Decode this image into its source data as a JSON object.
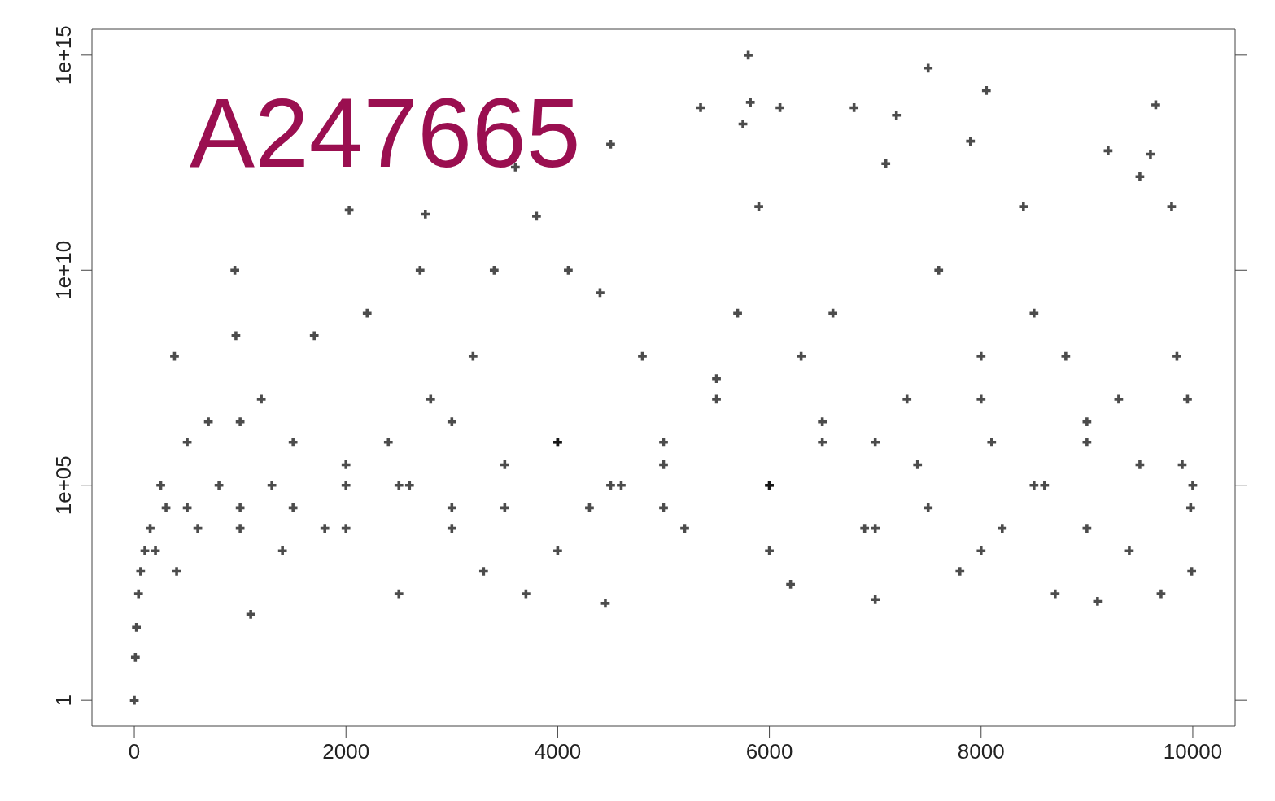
{
  "chart_data": {
    "type": "scatter",
    "annotations": [
      "A247665"
    ],
    "log": "y",
    "marker": "cross",
    "grid": false,
    "legend": false,
    "xlim": [
      -400,
      10400
    ],
    "xticks": [
      0,
      2000,
      4000,
      6000,
      8000,
      10000
    ],
    "ylim": [
      0.25,
      4000000000000000.0
    ],
    "yticks": [
      {
        "value": 1,
        "label": "1"
      },
      {
        "value": 100000,
        "label": "1e+05"
      },
      {
        "value": 10000000000,
        "label": "1e+10"
      },
      {
        "value": 1000000000000000,
        "label": "1e+15"
      }
    ],
    "series": [
      {
        "color": "#000000",
        "x": [
          0,
          10,
          20,
          40,
          60,
          100,
          150,
          200,
          250,
          300,
          380,
          400,
          500,
          600,
          700,
          800,
          950,
          960,
          1000,
          1100,
          1200,
          1300,
          1400,
          1500,
          1700,
          1800,
          2000,
          2030,
          2200,
          2400,
          2500,
          2600,
          2700,
          2750,
          2800,
          3000,
          3200,
          3300,
          3400,
          3500,
          3600,
          3700,
          3800,
          4000,
          4100,
          4300,
          4400,
          4450,
          4500,
          4600,
          4800,
          5000,
          5200,
          5350,
          5500,
          5700,
          5750,
          5800,
          5820,
          5900,
          6000,
          6100,
          6200,
          6300,
          6500,
          6600,
          6800,
          6900,
          7000,
          7100,
          7200,
          7300,
          7400,
          7500,
          7600,
          7800,
          7900,
          8000,
          8050,
          8100,
          8200,
          8400,
          8500,
          8600,
          8700,
          8800,
          9000,
          9100,
          9200,
          9300,
          9400,
          9500,
          9600,
          9650,
          9700,
          9800,
          9850,
          9900,
          9950,
          9980,
          9990,
          10000,
          500,
          1000,
          1500,
          2000,
          2500,
          3000,
          3500,
          4000,
          4500,
          5000,
          5500,
          6000,
          6500,
          7000,
          7500,
          8000,
          8500,
          9000,
          9500,
          1000,
          2000,
          3000,
          4000,
          5000,
          6000,
          7000,
          8000,
          9000
        ],
        "values": [
          1,
          10,
          50,
          300,
          1000,
          3000,
          10000,
          3000,
          100000,
          30000,
          100000000,
          1000,
          1000000,
          10000,
          3000000,
          100000,
          10000000000,
          300000000,
          30000,
          100,
          10000000,
          100000,
          3000,
          1000000,
          300000000,
          10000,
          100000,
          250000000000,
          1000000000,
          1000000,
          300,
          100000,
          10000000000,
          200000000000,
          10000000,
          30000,
          100000000,
          1000,
          10000000000,
          300000,
          2500000000000,
          300,
          180000000000,
          1000000,
          10000000000,
          30000,
          3000000000,
          180,
          8500000000000,
          100000,
          100000000,
          1000000,
          10000,
          60000000000000,
          30000000,
          1000000000,
          25000000000000,
          1000000000000000,
          80000000000000,
          300000000000,
          100000,
          60000000000000,
          500,
          100000000,
          1000000,
          1000000000,
          60000000000000,
          10000,
          220,
          3000000000000,
          40000000000000,
          10000000,
          300000,
          500000000000000,
          10000000000,
          1000,
          10000000000000,
          100000000,
          150000000000000,
          1000000,
          10000,
          300000000000,
          1000000000,
          100000,
          300,
          100000000,
          1000000,
          200,
          6000000000000,
          10000000,
          3000,
          1500000000000,
          5000000000000,
          70000000000000,
          300,
          300000000000,
          100000000,
          300000,
          10000000,
          30000,
          1000,
          100000,
          30000,
          3000000,
          30000,
          300000,
          100000,
          3000000,
          30000,
          1000000,
          100000,
          300000,
          10000000,
          100000,
          3000000,
          1000000,
          30000,
          10000000,
          100000,
          3000000,
          300000,
          10000,
          10000,
          10000,
          3000,
          30000,
          3000,
          10000,
          3000,
          10000
        ]
      }
    ]
  }
}
